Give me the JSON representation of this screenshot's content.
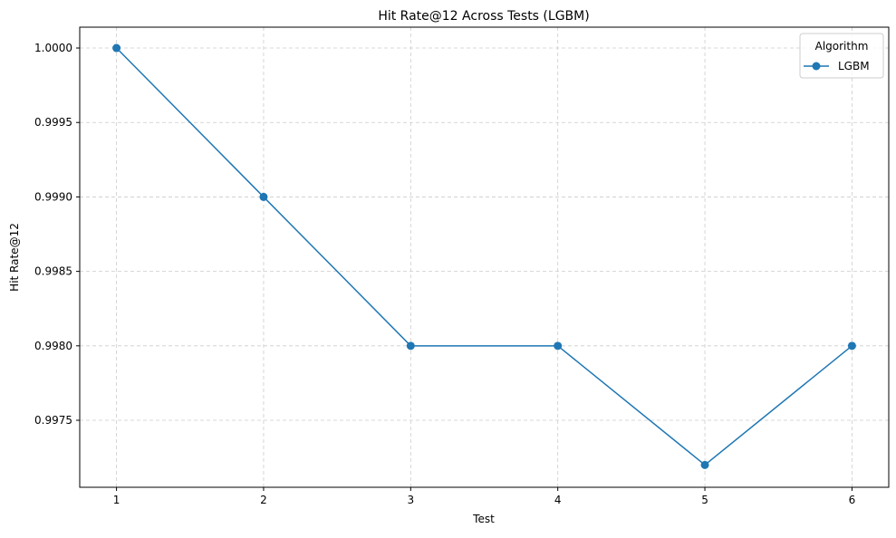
{
  "chart_data": {
    "type": "line",
    "title": "Hit Rate@12 Across Tests (LGBM)",
    "xlabel": "Test",
    "ylabel": "Hit Rate@12",
    "x": [
      1,
      2,
      3,
      4,
      5,
      6
    ],
    "xticks": [
      "1",
      "2",
      "3",
      "4",
      "5",
      "6"
    ],
    "yticks": [
      "0.9975",
      "0.9980",
      "0.9985",
      "0.9990",
      "0.9995",
      "1.0000"
    ],
    "xlim": [
      0.75,
      6.25
    ],
    "ylim": [
      0.99705,
      1.00014
    ],
    "grid": true,
    "legend": {
      "title": "Algorithm",
      "placement": "top-right"
    },
    "series": [
      {
        "name": "LGBM",
        "values": [
          1.0,
          0.999,
          0.998,
          0.998,
          0.9972,
          0.998
        ],
        "color": "#1f77b4",
        "marker": "circle"
      }
    ]
  }
}
